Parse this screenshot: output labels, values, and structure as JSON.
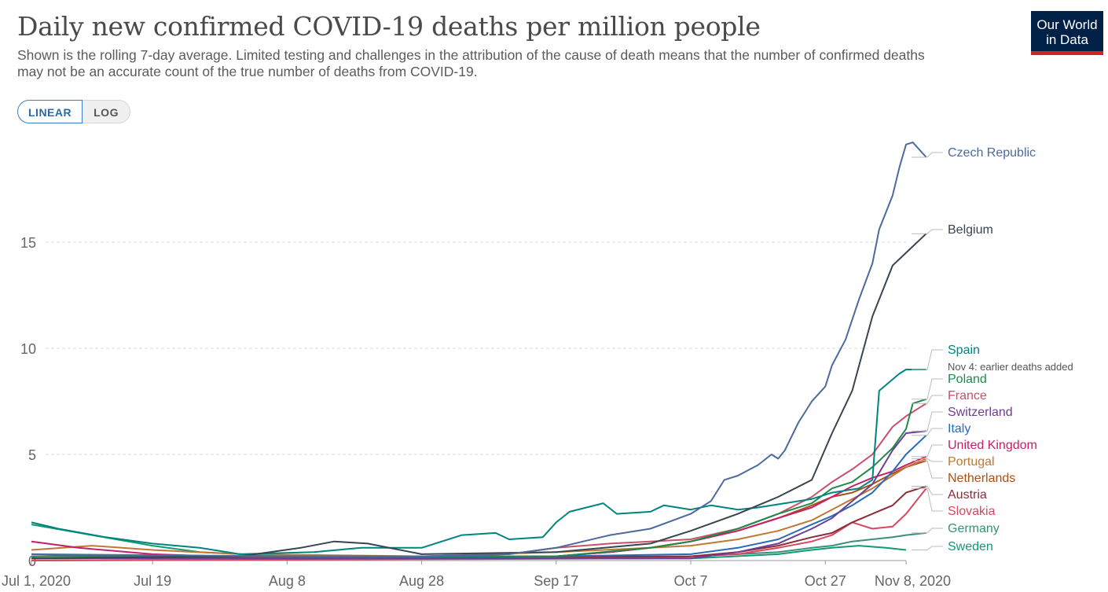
{
  "header": {
    "title": "Daily new confirmed COVID-19 deaths per million people",
    "subtitle": "Shown is the rolling 7-day average. Limited testing and challenges in the attribution of the cause of death means that the number of confirmed deaths may not be an accurate count of the true number of deaths from COVID-19.",
    "logo_line1": "Our World",
    "logo_line2": "in Data"
  },
  "controls": {
    "linear_label": "LINEAR",
    "log_label": "LOG",
    "selected": "LINEAR"
  },
  "chart_data": {
    "type": "line",
    "title": "Daily new confirmed COVID-19 deaths per million people",
    "x_start": "2020-07-01",
    "x_end": "2020-11-08",
    "x_ticks": [
      "Jul 1, 2020",
      "Jul 19",
      "Aug 8",
      "Aug 28",
      "Sep 17",
      "Oct 7",
      "Oct 27",
      "Nov 8, 2020"
    ],
    "y_ticks": [
      0,
      5,
      10,
      15
    ],
    "ylim": [
      0,
      20
    ],
    "scale": "linear",
    "grid": "horizontal dashed",
    "legend": "right, line-end labels",
    "series": [
      {
        "name": "Czech Republic",
        "color": "#4c6a9c",
        "points": [
          [
            "2020-07-01",
            0.3
          ],
          [
            "2020-08-08",
            0.2
          ],
          [
            "2020-08-28",
            0.2
          ],
          [
            "2020-09-10",
            0.3
          ],
          [
            "2020-09-17",
            0.6
          ],
          [
            "2020-09-25",
            1.2
          ],
          [
            "2020-10-01",
            1.5
          ],
          [
            "2020-10-07",
            2.2
          ],
          [
            "2020-10-10",
            2.8
          ],
          [
            "2020-10-12",
            3.8
          ],
          [
            "2020-10-14",
            4.0
          ],
          [
            "2020-10-17",
            4.5
          ],
          [
            "2020-10-19",
            5.0
          ],
          [
            "2020-10-20",
            4.8
          ],
          [
            "2020-10-21",
            5.2
          ],
          [
            "2020-10-23",
            6.5
          ],
          [
            "2020-10-25",
            7.5
          ],
          [
            "2020-10-27",
            8.2
          ],
          [
            "2020-10-28",
            9.2
          ],
          [
            "2020-10-30",
            10.4
          ],
          [
            "2020-11-01",
            12.3
          ],
          [
            "2020-11-03",
            14.0
          ],
          [
            "2020-11-04",
            15.6
          ],
          [
            "2020-11-06",
            17.2
          ],
          [
            "2020-11-07",
            18.5
          ],
          [
            "2020-11-08",
            19.6
          ],
          [
            "2020-11-09",
            19.7
          ],
          [
            "2020-11-11",
            19.0
          ]
        ]
      },
      {
        "name": "Belgium",
        "color": "#3a4450",
        "points": [
          [
            "2020-07-01",
            0.1
          ],
          [
            "2020-08-01",
            0.2
          ],
          [
            "2020-08-10",
            0.6
          ],
          [
            "2020-08-15",
            0.9
          ],
          [
            "2020-08-20",
            0.8
          ],
          [
            "2020-08-28",
            0.3
          ],
          [
            "2020-09-17",
            0.4
          ],
          [
            "2020-10-01",
            0.8
          ],
          [
            "2020-10-07",
            1.4
          ],
          [
            "2020-10-14",
            2.2
          ],
          [
            "2020-10-20",
            3.0
          ],
          [
            "2020-10-25",
            3.8
          ],
          [
            "2020-10-28",
            6.0
          ],
          [
            "2020-10-31",
            8.0
          ],
          [
            "2020-11-03",
            11.5
          ],
          [
            "2020-11-06",
            13.9
          ],
          [
            "2020-11-08",
            14.5
          ],
          [
            "2020-11-11",
            15.4
          ]
        ]
      },
      {
        "name": "Spain",
        "color": "#00847e",
        "points": [
          [
            "2020-07-01",
            1.8
          ],
          [
            "2020-07-05",
            1.5
          ],
          [
            "2020-07-12",
            1.1
          ],
          [
            "2020-07-19",
            0.8
          ],
          [
            "2020-07-26",
            0.6
          ],
          [
            "2020-08-01",
            0.3
          ],
          [
            "2020-08-12",
            0.4
          ],
          [
            "2020-08-19",
            0.6
          ],
          [
            "2020-08-28",
            0.6
          ],
          [
            "2020-09-03",
            1.2
          ],
          [
            "2020-09-08",
            1.3
          ],
          [
            "2020-09-10",
            1.0
          ],
          [
            "2020-09-15",
            1.1
          ],
          [
            "2020-09-17",
            1.8
          ],
          [
            "2020-09-19",
            2.3
          ],
          [
            "2020-09-24",
            2.7
          ],
          [
            "2020-09-26",
            2.2
          ],
          [
            "2020-10-01",
            2.3
          ],
          [
            "2020-10-03",
            2.6
          ],
          [
            "2020-10-07",
            2.4
          ],
          [
            "2020-10-10",
            2.6
          ],
          [
            "2020-10-14",
            2.4
          ],
          [
            "2020-10-17",
            2.5
          ],
          [
            "2020-10-21",
            2.7
          ],
          [
            "2020-10-25",
            2.9
          ],
          [
            "2020-10-28",
            3.2
          ],
          [
            "2020-11-01",
            3.4
          ],
          [
            "2020-11-03",
            3.8
          ],
          [
            "2020-11-04",
            8.0
          ],
          [
            "2020-11-07",
            8.8
          ],
          [
            "2020-11-08",
            9.0
          ],
          [
            "2020-11-11",
            9.0
          ]
        ]
      },
      {
        "name": "Poland",
        "color": "#1d8a4a",
        "points": [
          [
            "2020-07-01",
            0.2
          ],
          [
            "2020-09-17",
            0.2
          ],
          [
            "2020-10-01",
            0.6
          ],
          [
            "2020-10-07",
            0.9
          ],
          [
            "2020-10-14",
            1.5
          ],
          [
            "2020-10-20",
            2.2
          ],
          [
            "2020-10-25",
            2.7
          ],
          [
            "2020-10-28",
            3.4
          ],
          [
            "2020-10-31",
            3.7
          ],
          [
            "2020-11-03",
            4.4
          ],
          [
            "2020-11-06",
            5.3
          ],
          [
            "2020-11-08",
            6.2
          ],
          [
            "2020-11-09",
            7.4
          ],
          [
            "2020-11-11",
            7.6
          ]
        ]
      },
      {
        "name": "France",
        "color": "#c8506a",
        "points": [
          [
            "2020-07-01",
            0.2
          ],
          [
            "2020-08-28",
            0.2
          ],
          [
            "2020-09-10",
            0.3
          ],
          [
            "2020-09-17",
            0.6
          ],
          [
            "2020-09-25",
            0.8
          ],
          [
            "2020-10-01",
            0.9
          ],
          [
            "2020-10-07",
            1.0
          ],
          [
            "2020-10-14",
            1.5
          ],
          [
            "2020-10-20",
            2.2
          ],
          [
            "2020-10-25",
            3.0
          ],
          [
            "2020-10-28",
            3.7
          ],
          [
            "2020-10-31",
            4.3
          ],
          [
            "2020-11-03",
            5.0
          ],
          [
            "2020-11-06",
            6.3
          ],
          [
            "2020-11-08",
            6.8
          ],
          [
            "2020-11-11",
            7.4
          ]
        ]
      },
      {
        "name": "Switzerland",
        "color": "#6d3e91",
        "points": [
          [
            "2020-07-01",
            0.1
          ],
          [
            "2020-10-07",
            0.1
          ],
          [
            "2020-10-14",
            0.4
          ],
          [
            "2020-10-20",
            0.8
          ],
          [
            "2020-10-25",
            1.5
          ],
          [
            "2020-10-28",
            2.0
          ],
          [
            "2020-10-31",
            2.8
          ],
          [
            "2020-11-03",
            3.6
          ],
          [
            "2020-11-06",
            5.2
          ],
          [
            "2020-11-08",
            6.0
          ],
          [
            "2020-11-11",
            6.1
          ]
        ]
      },
      {
        "name": "Italy",
        "color": "#286bbb",
        "points": [
          [
            "2020-07-01",
            0.3
          ],
          [
            "2020-08-01",
            0.1
          ],
          [
            "2020-09-17",
            0.2
          ],
          [
            "2020-10-07",
            0.3
          ],
          [
            "2020-10-14",
            0.6
          ],
          [
            "2020-10-20",
            1.0
          ],
          [
            "2020-10-25",
            1.7
          ],
          [
            "2020-10-28",
            2.1
          ],
          [
            "2020-10-31",
            2.6
          ],
          [
            "2020-11-03",
            3.2
          ],
          [
            "2020-11-06",
            4.2
          ],
          [
            "2020-11-08",
            5.0
          ],
          [
            "2020-11-11",
            5.9
          ]
        ]
      },
      {
        "name": "United Kingdom",
        "color": "#c51f6b",
        "points": [
          [
            "2020-07-01",
            0.9
          ],
          [
            "2020-07-08",
            0.6
          ],
          [
            "2020-07-19",
            0.3
          ],
          [
            "2020-08-08",
            0.1
          ],
          [
            "2020-09-17",
            0.2
          ],
          [
            "2020-09-25",
            0.4
          ],
          [
            "2020-10-01",
            0.6
          ],
          [
            "2020-10-07",
            0.9
          ],
          [
            "2020-10-14",
            1.4
          ],
          [
            "2020-10-20",
            2.0
          ],
          [
            "2020-10-25",
            2.5
          ],
          [
            "2020-10-28",
            3.0
          ],
          [
            "2020-10-31",
            3.5
          ],
          [
            "2020-11-03",
            3.9
          ],
          [
            "2020-11-06",
            4.2
          ],
          [
            "2020-11-08",
            4.5
          ],
          [
            "2020-11-11",
            4.9
          ]
        ]
      },
      {
        "name": "Portugal",
        "color": "#c07734",
        "points": [
          [
            "2020-07-01",
            0.5
          ],
          [
            "2020-07-10",
            0.7
          ],
          [
            "2020-07-19",
            0.5
          ],
          [
            "2020-08-01",
            0.3
          ],
          [
            "2020-08-28",
            0.2
          ],
          [
            "2020-09-17",
            0.4
          ],
          [
            "2020-10-01",
            0.6
          ],
          [
            "2020-10-07",
            0.7
          ],
          [
            "2020-10-14",
            1.0
          ],
          [
            "2020-10-20",
            1.4
          ],
          [
            "2020-10-25",
            1.9
          ],
          [
            "2020-10-28",
            2.4
          ],
          [
            "2020-10-31",
            2.9
          ],
          [
            "2020-11-03",
            3.4
          ],
          [
            "2020-11-06",
            4.0
          ],
          [
            "2020-11-08",
            4.4
          ],
          [
            "2020-11-11",
            4.8
          ]
        ]
      },
      {
        "name": "Netherlands",
        "color": "#a85016",
        "points": [
          [
            "2020-07-01",
            0.2
          ],
          [
            "2020-09-17",
            0.2
          ],
          [
            "2020-09-25",
            0.4
          ],
          [
            "2020-10-01",
            0.6
          ],
          [
            "2020-10-07",
            0.9
          ],
          [
            "2020-10-14",
            1.4
          ],
          [
            "2020-10-20",
            2.0
          ],
          [
            "2020-10-25",
            2.6
          ],
          [
            "2020-10-28",
            3.0
          ],
          [
            "2020-10-31",
            3.2
          ],
          [
            "2020-11-03",
            3.6
          ],
          [
            "2020-11-06",
            4.1
          ],
          [
            "2020-11-08",
            4.4
          ],
          [
            "2020-11-11",
            4.7
          ]
        ]
      },
      {
        "name": "Austria",
        "color": "#8e2b3a",
        "points": [
          [
            "2020-07-01",
            0.1
          ],
          [
            "2020-10-07",
            0.2
          ],
          [
            "2020-10-14",
            0.4
          ],
          [
            "2020-10-20",
            0.7
          ],
          [
            "2020-10-25",
            1.1
          ],
          [
            "2020-10-28",
            1.3
          ],
          [
            "2020-10-31",
            1.8
          ],
          [
            "2020-11-03",
            2.2
          ],
          [
            "2020-11-06",
            2.6
          ],
          [
            "2020-11-08",
            3.2
          ],
          [
            "2020-11-11",
            3.5
          ]
        ]
      },
      {
        "name": "Slovakia",
        "color": "#d5485f",
        "points": [
          [
            "2020-07-01",
            0.0
          ],
          [
            "2020-10-01",
            0.1
          ],
          [
            "2020-10-14",
            0.3
          ],
          [
            "2020-10-20",
            0.6
          ],
          [
            "2020-10-25",
            0.9
          ],
          [
            "2020-10-28",
            1.2
          ],
          [
            "2020-10-31",
            1.8
          ],
          [
            "2020-11-03",
            1.5
          ],
          [
            "2020-11-06",
            1.6
          ],
          [
            "2020-11-08",
            2.2
          ],
          [
            "2020-11-11",
            3.4
          ]
        ]
      },
      {
        "name": "Germany",
        "color": "#3a8f7a",
        "points": [
          [
            "2020-07-01",
            0.1
          ],
          [
            "2020-09-17",
            0.1
          ],
          [
            "2020-10-07",
            0.2
          ],
          [
            "2020-10-14",
            0.3
          ],
          [
            "2020-10-20",
            0.4
          ],
          [
            "2020-10-25",
            0.6
          ],
          [
            "2020-10-28",
            0.7
          ],
          [
            "2020-10-31",
            0.9
          ],
          [
            "2020-11-03",
            1.0
          ],
          [
            "2020-11-06",
            1.1
          ],
          [
            "2020-11-08",
            1.2
          ],
          [
            "2020-11-11",
            1.3
          ]
        ]
      },
      {
        "name": "Sweden",
        "color": "#139a72",
        "points": [
          [
            "2020-07-01",
            1.7
          ],
          [
            "2020-07-10",
            1.2
          ],
          [
            "2020-07-19",
            0.7
          ],
          [
            "2020-07-26",
            0.4
          ],
          [
            "2020-08-08",
            0.2
          ],
          [
            "2020-08-28",
            0.1
          ],
          [
            "2020-09-17",
            0.1
          ],
          [
            "2020-10-07",
            0.1
          ],
          [
            "2020-10-20",
            0.3
          ],
          [
            "2020-10-25",
            0.5
          ],
          [
            "2020-10-28",
            0.6
          ],
          [
            "2020-11-01",
            0.7
          ],
          [
            "2020-11-05",
            0.6
          ],
          [
            "2020-11-08",
            0.5
          ]
        ]
      }
    ],
    "annotations": [
      {
        "series": "Spain",
        "text": "Nov 4: earlier deaths added"
      }
    ]
  }
}
